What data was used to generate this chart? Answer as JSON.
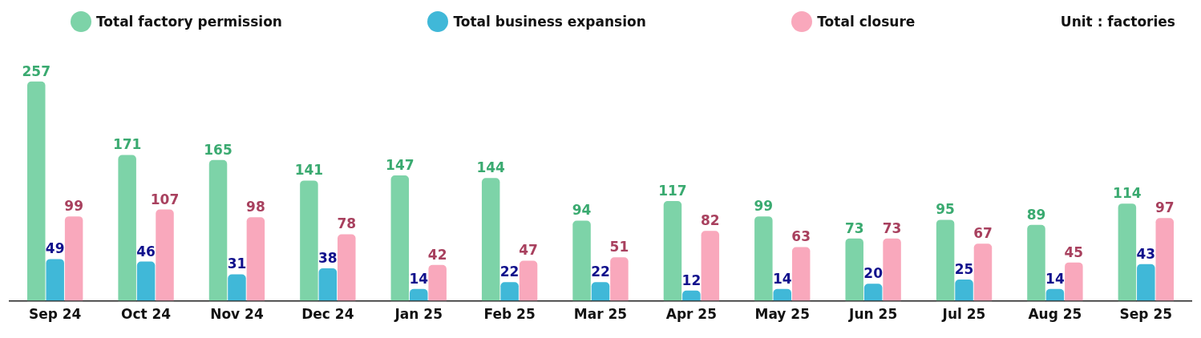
{
  "chart_data": {
    "type": "bar",
    "categories": [
      "Sep 24",
      "Oct 24",
      "Nov 24",
      "Dec 24",
      "Jan 25",
      "Feb 25",
      "Mar 25",
      "Apr 25",
      "May 25",
      "Jun 25",
      "Jul 25",
      "Aug 25",
      "Sep 25"
    ],
    "series": [
      {
        "name": "Total factory permission",
        "color": "#7dd3a8",
        "values": [
          257,
          171,
          165,
          141,
          147,
          144,
          94,
          117,
          99,
          73,
          95,
          89,
          114
        ]
      },
      {
        "name": "Total business expansion",
        "color": "#40b8d8",
        "values": [
          49,
          46,
          31,
          38,
          14,
          22,
          22,
          12,
          14,
          20,
          25,
          14,
          43
        ]
      },
      {
        "name": "Total closure",
        "color": "#f9a8bc",
        "values": [
          99,
          107,
          98,
          78,
          42,
          47,
          51,
          82,
          63,
          73,
          67,
          45,
          97
        ]
      }
    ],
    "data_labels": true,
    "legend": "top",
    "grid": false,
    "annotations": [
      "Unit : factories"
    ]
  }
}
